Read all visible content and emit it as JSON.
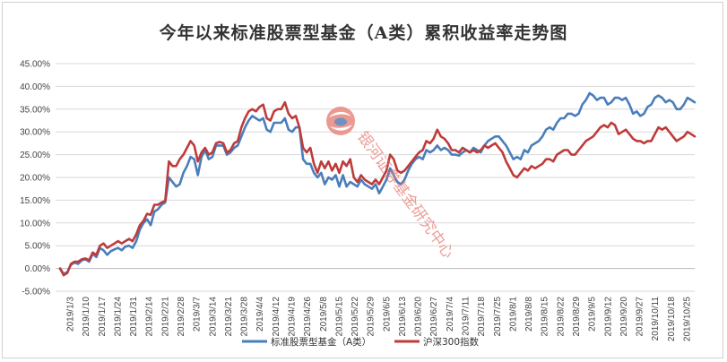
{
  "chart_data": {
    "type": "line",
    "title": "今年以来标准股票型基金（A类）累积收益率走势图",
    "xlabel": "",
    "ylabel": "",
    "ylim": [
      -0.05,
      0.45
    ],
    "yticks": [
      "-5.00%",
      "0.00%",
      "5.00%",
      "10.00%",
      "15.00%",
      "20.00%",
      "25.00%",
      "30.00%",
      "35.00%",
      "40.00%",
      "45.00%"
    ],
    "x_tick_labels": [
      "2019/1/3",
      "2019/1/10",
      "2019/1/17",
      "2019/1/24",
      "2019/1/31",
      "2019/2/14",
      "2019/2/21",
      "2019/2/28",
      "2019/3/7",
      "2019/3/14",
      "2019/3/21",
      "2019/3/28",
      "2019/4/4",
      "2019/4/12",
      "2019/4/19",
      "2019/4/26",
      "2019/5/8",
      "2019/5/15",
      "2019/5/22",
      "2019/5/29",
      "2019/6/5",
      "2019/6/13",
      "2019/6/20",
      "2019/6/27",
      "2019/7/4",
      "2019/7/11",
      "2019/7/18",
      "2019/7/25",
      "2019/8/1",
      "2019/8/8",
      "2019/8/15",
      "2019/8/22",
      "2019/8/29",
      "2019/9/5",
      "2019/9/12",
      "2019/9/20",
      "2019/9/27",
      "2019/10/11",
      "2019/10/18",
      "2019/10/25"
    ],
    "grid": true,
    "legend_position": "bottom",
    "series": [
      {
        "name": "标准股票型基金（A类）",
        "color": "#4a7ebb",
        "values": [
          0.0,
          -0.012,
          -0.008,
          0.008,
          0.013,
          0.01,
          0.018,
          0.02,
          0.015,
          0.032,
          0.025,
          0.045,
          0.04,
          0.03,
          0.038,
          0.042,
          0.045,
          0.04,
          0.048,
          0.05,
          0.045,
          0.06,
          0.085,
          0.1,
          0.108,
          0.095,
          0.125,
          0.13,
          0.14,
          0.145,
          0.2,
          0.19,
          0.18,
          0.185,
          0.21,
          0.225,
          0.245,
          0.24,
          0.205,
          0.245,
          0.26,
          0.24,
          0.245,
          0.27,
          0.27,
          0.27,
          0.25,
          0.255,
          0.265,
          0.27,
          0.29,
          0.31,
          0.325,
          0.335,
          0.33,
          0.325,
          0.33,
          0.305,
          0.3,
          0.32,
          0.32,
          0.32,
          0.33,
          0.305,
          0.3,
          0.31,
          0.31,
          0.24,
          0.23,
          0.23,
          0.21,
          0.2,
          0.21,
          0.185,
          0.2,
          0.195,
          0.205,
          0.18,
          0.205,
          0.18,
          0.19,
          0.185,
          0.18,
          0.195,
          0.185,
          0.18,
          0.175,
          0.185,
          0.165,
          0.18,
          0.195,
          0.22,
          0.205,
          0.19,
          0.185,
          0.195,
          0.215,
          0.23,
          0.24,
          0.245,
          0.24,
          0.26,
          0.255,
          0.26,
          0.27,
          0.26,
          0.265,
          0.26,
          0.25,
          0.25,
          0.248,
          0.255,
          0.26,
          0.255,
          0.265,
          0.26,
          0.255,
          0.27,
          0.28,
          0.285,
          0.29,
          0.29,
          0.28,
          0.27,
          0.255,
          0.24,
          0.245,
          0.24,
          0.26,
          0.255,
          0.27,
          0.275,
          0.28,
          0.29,
          0.305,
          0.31,
          0.305,
          0.32,
          0.33,
          0.33,
          0.34,
          0.34,
          0.335,
          0.34,
          0.36,
          0.37,
          0.385,
          0.38,
          0.37,
          0.375,
          0.375,
          0.36,
          0.365,
          0.375,
          0.375,
          0.37,
          0.375,
          0.36,
          0.34,
          0.345,
          0.335,
          0.34,
          0.355,
          0.36,
          0.375,
          0.38,
          0.375,
          0.365,
          0.37,
          0.365,
          0.35,
          0.35,
          0.36,
          0.375,
          0.37,
          0.365
        ]
      },
      {
        "name": "沪深300指数",
        "color": "#be3b3b",
        "values": [
          0.0,
          -0.015,
          -0.01,
          0.01,
          0.015,
          0.015,
          0.02,
          0.022,
          0.018,
          0.035,
          0.03,
          0.05,
          0.055,
          0.045,
          0.05,
          0.055,
          0.06,
          0.055,
          0.06,
          0.065,
          0.06,
          0.075,
          0.095,
          0.105,
          0.12,
          0.118,
          0.14,
          0.14,
          0.145,
          0.148,
          0.235,
          0.225,
          0.225,
          0.24,
          0.25,
          0.265,
          0.28,
          0.27,
          0.235,
          0.255,
          0.265,
          0.25,
          0.255,
          0.275,
          0.278,
          0.275,
          0.255,
          0.26,
          0.275,
          0.28,
          0.31,
          0.33,
          0.345,
          0.35,
          0.345,
          0.355,
          0.36,
          0.33,
          0.325,
          0.345,
          0.35,
          0.35,
          0.365,
          0.34,
          0.33,
          0.335,
          0.31,
          0.265,
          0.255,
          0.265,
          0.23,
          0.21,
          0.235,
          0.22,
          0.235,
          0.215,
          0.23,
          0.21,
          0.235,
          0.225,
          0.24,
          0.2,
          0.19,
          0.205,
          0.195,
          0.19,
          0.185,
          0.195,
          0.185,
          0.2,
          0.215,
          0.25,
          0.24,
          0.215,
          0.21,
          0.215,
          0.225,
          0.235,
          0.245,
          0.255,
          0.26,
          0.28,
          0.275,
          0.285,
          0.305,
          0.29,
          0.285,
          0.275,
          0.26,
          0.26,
          0.255,
          0.265,
          0.26,
          0.255,
          0.26,
          0.255,
          0.26,
          0.27,
          0.265,
          0.27,
          0.275,
          0.265,
          0.255,
          0.235,
          0.22,
          0.205,
          0.2,
          0.21,
          0.22,
          0.215,
          0.225,
          0.22,
          0.225,
          0.23,
          0.24,
          0.24,
          0.235,
          0.25,
          0.255,
          0.26,
          0.26,
          0.25,
          0.25,
          0.26,
          0.27,
          0.28,
          0.285,
          0.29,
          0.3,
          0.31,
          0.315,
          0.31,
          0.32,
          0.315,
          0.295,
          0.3,
          0.305,
          0.295,
          0.285,
          0.28,
          0.28,
          0.275,
          0.28,
          0.28,
          0.295,
          0.31,
          0.305,
          0.31,
          0.3,
          0.29,
          0.28,
          0.285,
          0.29,
          0.3,
          0.295,
          0.29
        ]
      }
    ]
  },
  "watermark": {
    "text": "银河证券基金研究中心",
    "logo": "galaxy-securities-logo"
  }
}
